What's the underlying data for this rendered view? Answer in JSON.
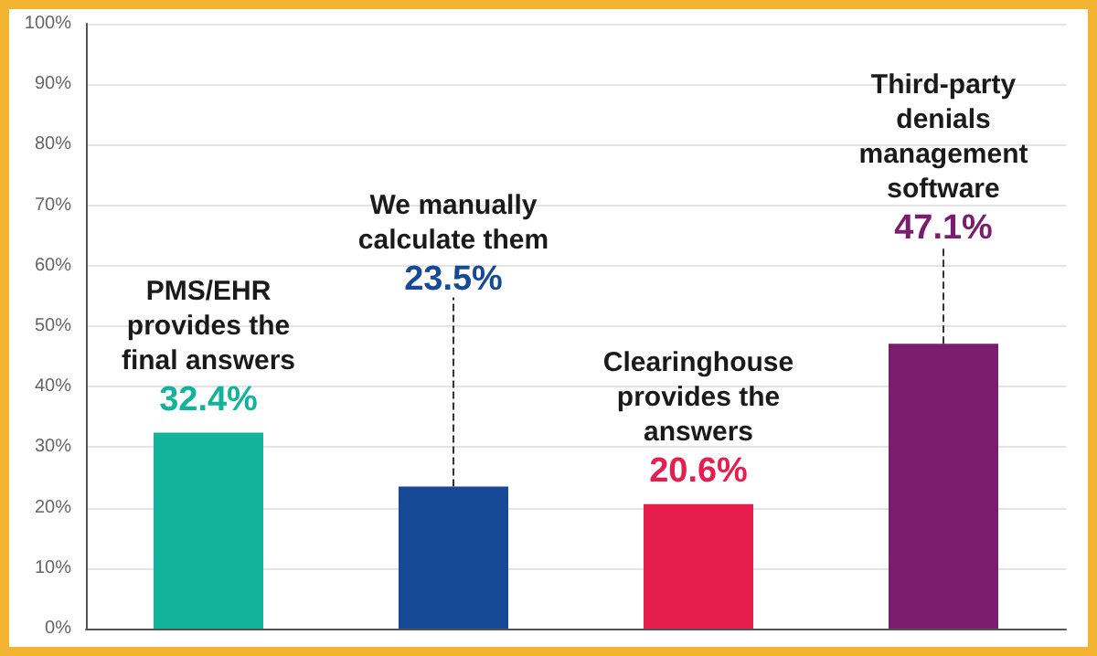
{
  "chart_data": {
    "type": "bar",
    "categories": [
      "PMS/EHR provides the final answers",
      "We manually calculate them",
      "Clearinghouse provides the answers",
      "Third-party denials management software"
    ],
    "values": [
      32.4,
      23.5,
      20.6,
      47.1
    ],
    "colors": [
      "#12b39a",
      "#174a96",
      "#e51e4e",
      "#7a1d6c"
    ],
    "value_labels": [
      "32.4%",
      "23.5%",
      "20.6%",
      "47.1%"
    ],
    "ylim": [
      0,
      100
    ],
    "yticks": [
      {
        "value": 0,
        "label": "0%"
      },
      {
        "value": 10,
        "label": "10%"
      },
      {
        "value": 20,
        "label": "20%"
      },
      {
        "value": 30,
        "label": "30%"
      },
      {
        "value": 40,
        "label": "40%"
      },
      {
        "value": 50,
        "label": "50%"
      },
      {
        "value": 60,
        "label": "60%"
      },
      {
        "value": 70,
        "label": "70%"
      },
      {
        "value": 80,
        "label": "80%"
      },
      {
        "value": 90,
        "label": "90%"
      },
      {
        "value": 100,
        "label": "100%"
      }
    ],
    "grid": "y"
  }
}
